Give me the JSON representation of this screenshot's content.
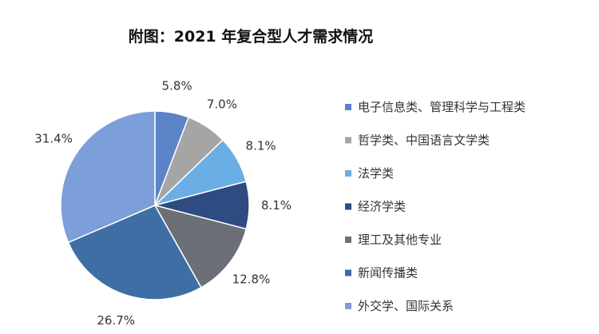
{
  "chart_data": {
    "type": "pie",
    "title": "附图：2021 年复合型人才需求情况",
    "categories": [
      "电子信息类、管理科学与工程类",
      "哲学类、中国语言文学类",
      "法学类",
      "经济学类",
      "理工及其他专业",
      "新闻传播类",
      "外交学、国际关系"
    ],
    "values": [
      5.8,
      7.0,
      8.1,
      8.1,
      12.8,
      26.7,
      31.4
    ],
    "labels": [
      "5.8%",
      "7.0%",
      "8.1%",
      "8.1%",
      "12.8%",
      "26.7%",
      "31.4%"
    ],
    "colors": [
      "#5b84c7",
      "#a5a5a5",
      "#6aaee5",
      "#2e4b82",
      "#6c6f78",
      "#3f6ea5",
      "#7c9ed9"
    ],
    "legend": "right"
  }
}
